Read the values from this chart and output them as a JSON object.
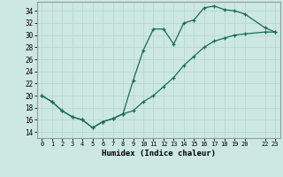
{
  "title": "",
  "xlabel": "Humidex (Indice chaleur)",
  "ylabel": "",
  "bg_color": "#cce8e0",
  "grid_color": "#b8d8d0",
  "line_color": "#1a6b5a",
  "xlim": [
    -0.5,
    23.5
  ],
  "ylim": [
    13.0,
    35.5
  ],
  "xticks": [
    0,
    1,
    2,
    3,
    4,
    5,
    6,
    7,
    8,
    9,
    10,
    11,
    12,
    13,
    14,
    15,
    16,
    17,
    18,
    19,
    20,
    22,
    23
  ],
  "yticks": [
    14,
    16,
    18,
    20,
    22,
    24,
    26,
    28,
    30,
    32,
    34
  ],
  "line1_x": [
    0,
    1,
    2,
    3,
    4,
    5,
    6,
    7,
    8,
    9,
    10,
    11,
    12,
    13,
    14,
    15,
    16,
    17,
    18,
    19,
    20,
    22,
    23
  ],
  "line1_y": [
    20.0,
    19.0,
    17.5,
    16.5,
    16.0,
    14.7,
    15.7,
    16.2,
    17.0,
    22.5,
    27.5,
    31.0,
    31.0,
    28.5,
    32.0,
    32.5,
    34.5,
    34.8,
    34.2,
    34.0,
    33.5,
    31.2,
    30.5
  ],
  "line2_x": [
    0,
    1,
    2,
    3,
    4,
    5,
    6,
    7,
    8,
    9,
    10,
    11,
    12,
    13,
    14,
    15,
    16,
    17,
    18,
    19,
    20,
    22,
    23
  ],
  "line2_y": [
    20.0,
    19.0,
    17.5,
    16.5,
    16.0,
    14.7,
    15.7,
    16.2,
    17.0,
    17.5,
    19.0,
    20.0,
    21.5,
    23.0,
    25.0,
    26.5,
    28.0,
    29.0,
    29.5,
    30.0,
    30.2,
    30.5,
    30.5
  ]
}
